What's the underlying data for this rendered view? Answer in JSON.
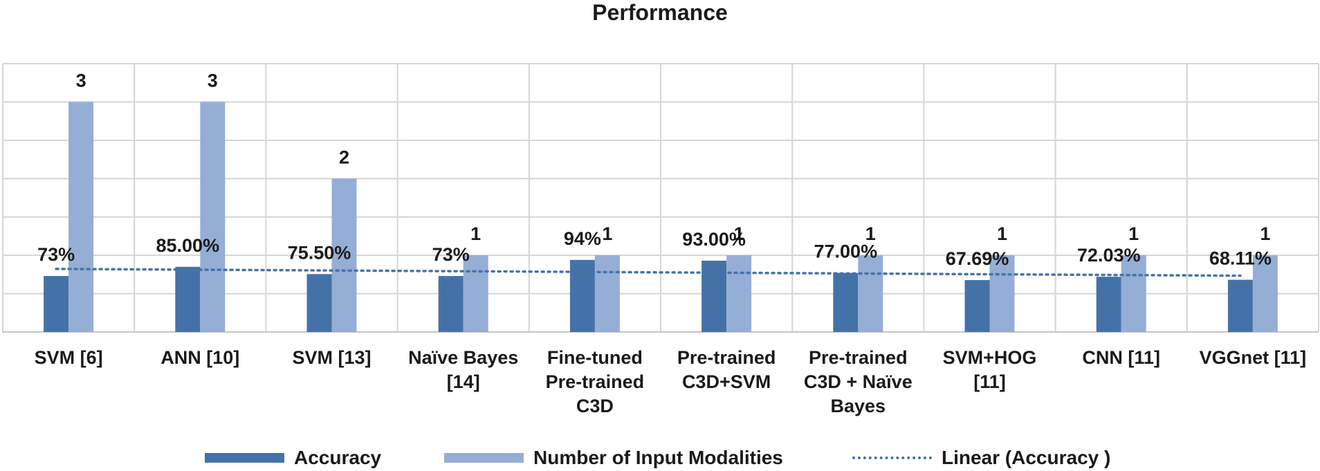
{
  "chart_data": {
    "type": "bar",
    "title": "Performance",
    "categories": [
      "SVM [6]",
      "ANN [10]",
      "SVM [13]",
      "Naïve Bayes [14]",
      "Fine-tuned Pre-trained C3D",
      "Pre-trained C3D+SVM",
      "Pre-trained C3D + Naïve Bayes",
      "SVM+HOG [11]",
      "CNN [11]",
      "VGGnet [11]"
    ],
    "category_lines": [
      [
        "SVM [6]"
      ],
      [
        "ANN [10]"
      ],
      [
        "SVM [13]"
      ],
      [
        "Naïve Bayes",
        "[14]"
      ],
      [
        "Fine-tuned",
        "Pre-trained",
        "C3D"
      ],
      [
        "Pre-trained",
        "C3D+SVM"
      ],
      [
        "Pre-trained",
        "C3D + Naïve",
        "Bayes"
      ],
      [
        "SVM+HOG",
        "[11]"
      ],
      [
        "CNN [11]"
      ],
      [
        "VGGnet [11]"
      ]
    ],
    "series": [
      {
        "name": "Accuracy",
        "color": "#4472a8",
        "values": [
          0.73,
          0.85,
          0.755,
          0.73,
          0.94,
          0.93,
          0.77,
          0.6769,
          0.7203,
          0.6811
        ],
        "labels": [
          "73%",
          "85.00%",
          "75.50%",
          "73%",
          "94%",
          "93.00%",
          "77.00%",
          "67.69%",
          "72.03%",
          "68.11%"
        ]
      },
      {
        "name": "Number of Input Modalities",
        "color": "#95aed6",
        "values": [
          3,
          3,
          2,
          1,
          1,
          1,
          1,
          1,
          1,
          1
        ],
        "labels": [
          "3",
          "3",
          "2",
          "1",
          "1",
          "1",
          "1",
          "1",
          "1",
          "1"
        ]
      }
    ],
    "trendline": {
      "name": "Linear (Accuracy )",
      "of_series": "Accuracy",
      "color": "#4472a8",
      "style": "dotted"
    },
    "ylim": [
      0,
      3.5
    ],
    "grid": true,
    "legend_position": "bottom"
  }
}
